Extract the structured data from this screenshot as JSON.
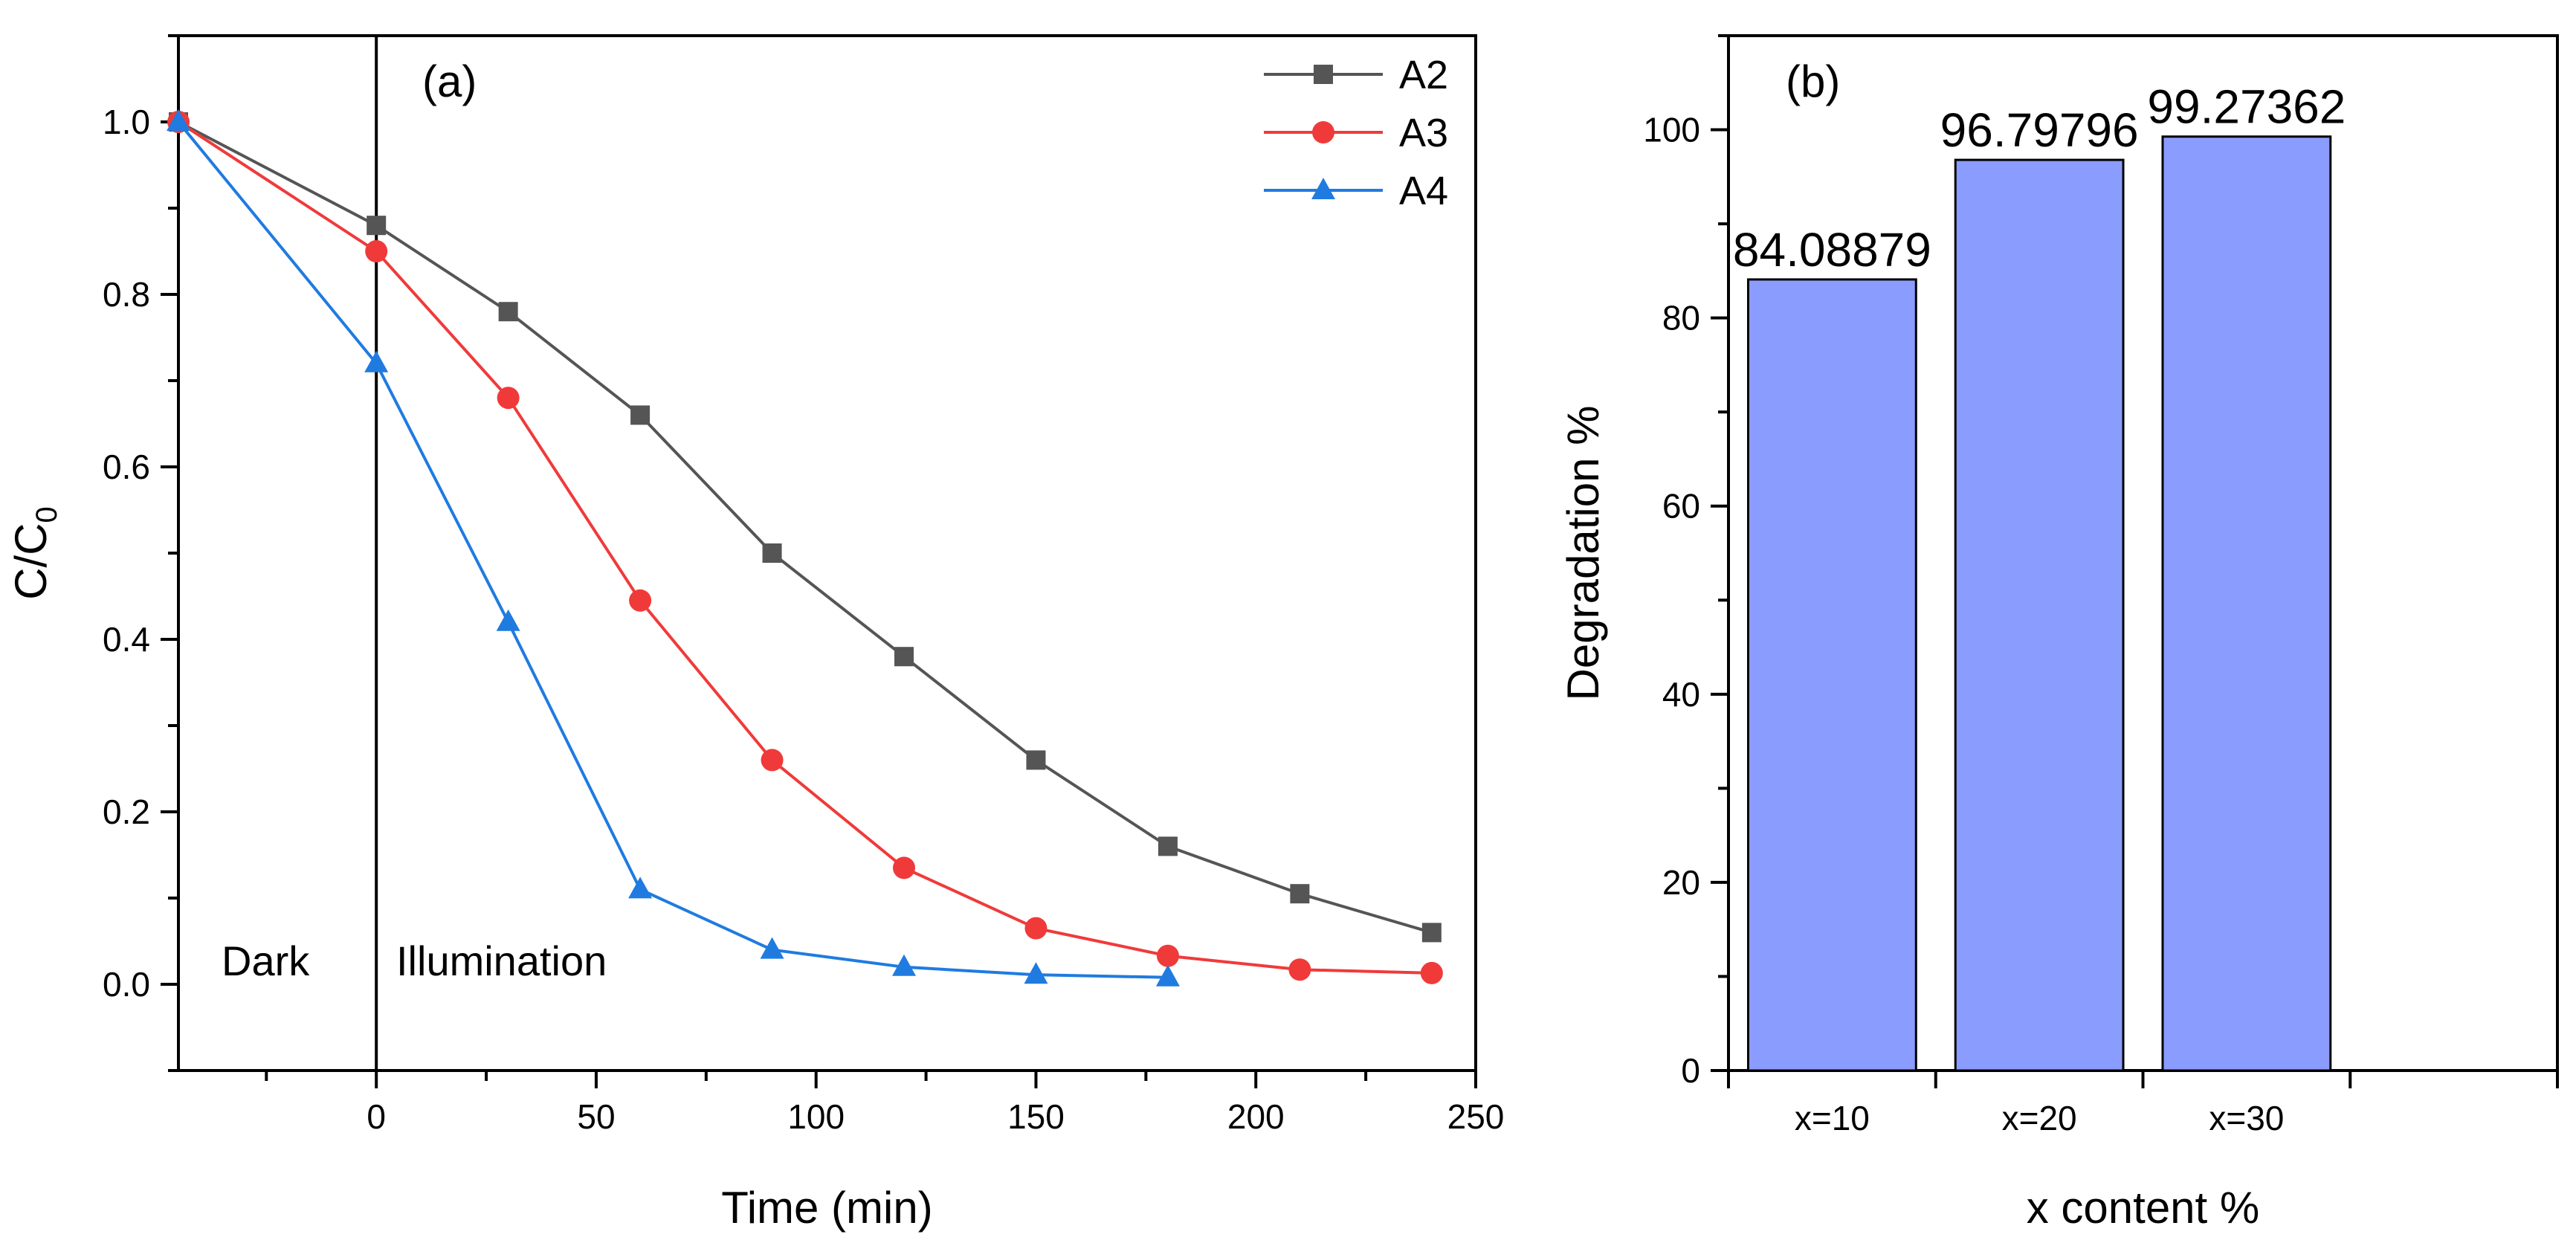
{
  "chart_data": [
    {
      "type": "line",
      "panel_label": "(a)",
      "xlabel": "Time (min)",
      "ylabel": "C/C",
      "ylabel_sub": "0",
      "xlim": [
        -45,
        250
      ],
      "ylim": [
        -0.1,
        1.1
      ],
      "xticks": [
        0,
        50,
        100,
        150,
        200,
        250
      ],
      "yticks": [
        0.0,
        0.2,
        0.4,
        0.6,
        0.8,
        1.0
      ],
      "xtick_labels": [
        "0",
        "50",
        "100",
        "150",
        "200",
        "250"
      ],
      "ytick_labels": [
        "0.0",
        "0.2",
        "0.4",
        "0.6",
        "0.8",
        "1.0"
      ],
      "divider_x": 0,
      "annotations": {
        "left": "Dark",
        "right": "Illumination"
      },
      "legend_position": "top-right",
      "series": [
        {
          "name": "A2",
          "color": "#555555",
          "marker": "square",
          "x": [
            -45,
            0,
            30,
            60,
            90,
            120,
            150,
            180,
            210,
            240
          ],
          "y": [
            1.0,
            0.88,
            0.78,
            0.66,
            0.5,
            0.38,
            0.26,
            0.16,
            0.105,
            0.06
          ]
        },
        {
          "name": "A3",
          "color": "#f03a3a",
          "marker": "circle",
          "x": [
            -45,
            0,
            30,
            60,
            90,
            120,
            150,
            180,
            210,
            240
          ],
          "y": [
            1.0,
            0.85,
            0.68,
            0.445,
            0.26,
            0.135,
            0.065,
            0.033,
            0.017,
            0.013
          ]
        },
        {
          "name": "A4",
          "color": "#1f7be0",
          "marker": "triangle",
          "x": [
            -45,
            0,
            30,
            60,
            90,
            120,
            150,
            180
          ],
          "y": [
            1.0,
            0.72,
            0.42,
            0.11,
            0.04,
            0.02,
            0.011,
            0.008
          ]
        }
      ]
    },
    {
      "type": "bar",
      "panel_label": "(b)",
      "xlabel": "x content %",
      "ylabel": "Degradation %",
      "ylim": [
        0,
        110
      ],
      "yticks": [
        0,
        20,
        40,
        60,
        80,
        100
      ],
      "ytick_labels": [
        "0",
        "20",
        "40",
        "60",
        "80",
        "100"
      ],
      "categories": [
        "x=10",
        "x=20",
        "x=30"
      ],
      "values": [
        84.08879,
        96.79796,
        99.27362
      ],
      "value_labels": [
        "84.08879",
        "96.79796",
        "99.27362"
      ],
      "bar_color": "#8b9cff"
    }
  ]
}
